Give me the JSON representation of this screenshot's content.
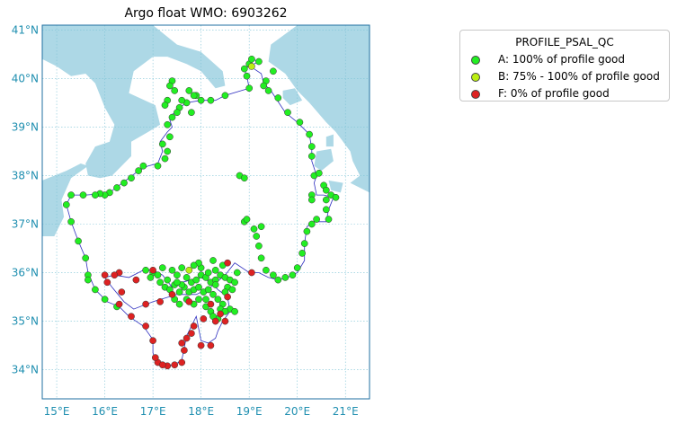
{
  "map": {
    "title": "Argo float WMO: 6903262",
    "x_ticks": [
      "15°E",
      "16°E",
      "17°E",
      "18°E",
      "19°E",
      "20°E",
      "21°E"
    ],
    "y_ticks": [
      "34°N",
      "35°N",
      "36°N",
      "37°N",
      "38°N",
      "39°N",
      "40°N",
      "41°N"
    ],
    "lon_range": [
      14.7,
      21.5
    ],
    "lat_range": [
      33.4,
      41.1
    ],
    "colors": {
      "sea": "#ffffff",
      "land": "#add8e6",
      "track": "#3030c0",
      "grid": "#7fc3d6",
      "axis": "#1f8fb0"
    }
  },
  "legend": {
    "title": "PROFILE_PSAL_QC",
    "items": [
      {
        "label": "A: 100% of profile good",
        "color": "#22ee22"
      },
      {
        "label": "B: 75% - 100% of profile good",
        "color": "#bbee11"
      },
      {
        "label": "F: 0% of profile good",
        "color": "#dd2222"
      }
    ]
  },
  "track": [
    [
      19.0,
      40.3
    ],
    [
      19.05,
      40.4
    ],
    [
      19.2,
      40.35
    ],
    [
      18.9,
      40.2
    ],
    [
      18.95,
      40.05
    ],
    [
      19.0,
      39.8
    ],
    [
      18.5,
      39.65
    ],
    [
      18.3,
      39.55
    ],
    [
      18.0,
      39.55
    ],
    [
      17.7,
      39.5
    ],
    [
      17.55,
      39.4
    ],
    [
      17.4,
      39.25
    ],
    [
      17.35,
      39.15
    ],
    [
      17.4,
      39.0
    ],
    [
      17.3,
      38.9
    ],
    [
      17.15,
      38.7
    ],
    [
      17.2,
      38.5
    ],
    [
      17.1,
      38.25
    ],
    [
      16.9,
      38.2
    ],
    [
      16.7,
      38.1
    ],
    [
      16.5,
      37.95
    ],
    [
      16.3,
      37.8
    ],
    [
      16.1,
      37.65
    ],
    [
      15.9,
      37.62
    ],
    [
      15.6,
      37.6
    ],
    [
      15.3,
      37.6
    ],
    [
      15.2,
      37.4
    ],
    [
      15.3,
      37.05
    ],
    [
      15.45,
      36.65
    ],
    [
      15.6,
      36.3
    ],
    [
      15.65,
      36.0
    ],
    [
      15.8,
      35.65
    ],
    [
      16.05,
      35.4
    ],
    [
      16.3,
      35.3
    ],
    [
      16.5,
      35.1
    ],
    [
      16.8,
      34.9
    ],
    [
      17.0,
      34.62
    ],
    [
      17.0,
      34.35
    ],
    [
      17.05,
      34.2
    ],
    [
      17.1,
      34.1
    ],
    [
      17.3,
      34.08
    ],
    [
      17.45,
      34.1
    ],
    [
      17.6,
      34.2
    ],
    [
      17.65,
      34.45
    ],
    [
      17.7,
      34.7
    ],
    [
      17.8,
      34.9
    ],
    [
      17.9,
      35.1
    ],
    [
      18.0,
      34.6
    ],
    [
      18.15,
      34.55
    ],
    [
      18.3,
      34.65
    ],
    [
      18.35,
      34.8
    ],
    [
      18.45,
      35.0
    ],
    [
      18.6,
      35.2
    ],
    [
      18.55,
      35.5
    ],
    [
      18.35,
      35.65
    ],
    [
      18.2,
      35.8
    ],
    [
      18.0,
      35.9
    ],
    [
      17.8,
      35.85
    ],
    [
      17.6,
      35.8
    ],
    [
      17.4,
      35.7
    ],
    [
      17.2,
      35.95
    ],
    [
      17.0,
      36.05
    ],
    [
      16.8,
      36.05
    ],
    [
      16.5,
      35.9
    ],
    [
      16.2,
      35.95
    ],
    [
      16.0,
      35.9
    ],
    [
      16.15,
      35.7
    ],
    [
      16.4,
      35.4
    ],
    [
      16.6,
      35.25
    ],
    [
      17.0,
      35.4
    ],
    [
      17.5,
      35.55
    ],
    [
      17.9,
      35.55
    ],
    [
      18.2,
      35.7
    ],
    [
      18.5,
      35.95
    ],
    [
      18.7,
      36.2
    ],
    [
      19.0,
      36.0
    ],
    [
      19.2,
      36.0
    ],
    [
      19.4,
      35.9
    ],
    [
      19.6,
      35.85
    ],
    [
      19.8,
      35.9
    ],
    [
      20.0,
      36.0
    ],
    [
      20.15,
      36.25
    ],
    [
      20.15,
      36.6
    ],
    [
      20.2,
      36.95
    ],
    [
      20.35,
      37.05
    ],
    [
      20.6,
      37.05
    ],
    [
      20.65,
      37.3
    ],
    [
      20.75,
      37.55
    ],
    [
      20.55,
      37.6
    ],
    [
      20.4,
      37.6
    ],
    [
      20.35,
      37.85
    ],
    [
      20.4,
      38.0
    ],
    [
      20.3,
      38.3
    ],
    [
      20.3,
      38.55
    ],
    [
      20.25,
      38.85
    ],
    [
      20.0,
      39.1
    ],
    [
      19.75,
      39.3
    ],
    [
      19.55,
      39.6
    ],
    [
      19.45,
      39.75
    ],
    [
      19.3,
      39.9
    ],
    [
      19.25,
      40.1
    ],
    [
      19.1,
      40.2
    ]
  ],
  "floats_red": [
    [
      17.3,
      34.08
    ],
    [
      17.45,
      34.1
    ],
    [
      17.1,
      34.15
    ],
    [
      17.05,
      34.25
    ],
    [
      17.6,
      34.15
    ],
    [
      17.65,
      34.4
    ],
    [
      17.7,
      34.65
    ],
    [
      17.8,
      34.75
    ],
    [
      17.85,
      34.9
    ],
    [
      18.0,
      34.5
    ],
    [
      18.2,
      34.5
    ],
    [
      16.85,
      34.9
    ],
    [
      16.55,
      35.1
    ],
    [
      16.3,
      35.35
    ],
    [
      16.35,
      35.6
    ],
    [
      17.4,
      35.55
    ],
    [
      17.75,
      35.4
    ],
    [
      18.05,
      35.05
    ],
    [
      18.3,
      35.0
    ],
    [
      18.4,
      35.15
    ],
    [
      16.0,
      35.95
    ],
    [
      16.3,
      36.0
    ],
    [
      16.65,
      35.85
    ],
    [
      16.05,
      35.8
    ],
    [
      17.0,
      36.05
    ],
    [
      18.55,
      35.5
    ],
    [
      18.55,
      36.2
    ],
    [
      19.05,
      36.0
    ],
    [
      17.15,
      35.4
    ],
    [
      16.85,
      35.35
    ],
    [
      16.2,
      35.95
    ],
    [
      18.2,
      35.35
    ],
    [
      17.0,
      34.6
    ],
    [
      17.6,
      34.55
    ],
    [
      17.2,
      34.1
    ],
    [
      18.5,
      35.0
    ]
  ],
  "floats_yellow": [
    [
      17.75,
      36.05
    ],
    [
      19.05,
      40.25
    ]
  ],
  "floats_green": [
    [
      19.0,
      40.3
    ],
    [
      19.05,
      40.4
    ],
    [
      19.2,
      40.35
    ],
    [
      18.9,
      40.2
    ],
    [
      18.95,
      40.05
    ],
    [
      19.0,
      39.8
    ],
    [
      19.5,
      40.15
    ],
    [
      19.35,
      39.95
    ],
    [
      19.3,
      39.85
    ],
    [
      19.4,
      39.75
    ],
    [
      19.6,
      39.6
    ],
    [
      19.8,
      39.3
    ],
    [
      20.05,
      39.1
    ],
    [
      20.25,
      38.85
    ],
    [
      20.3,
      38.6
    ],
    [
      20.3,
      38.4
    ],
    [
      20.35,
      38.0
    ],
    [
      20.45,
      38.05
    ],
    [
      20.55,
      37.8
    ],
    [
      20.6,
      37.7
    ],
    [
      20.7,
      37.6
    ],
    [
      20.8,
      37.55
    ],
    [
      20.6,
      37.5
    ],
    [
      20.3,
      37.6
    ],
    [
      20.3,
      37.5
    ],
    [
      20.6,
      37.3
    ],
    [
      20.65,
      37.1
    ],
    [
      20.4,
      37.1
    ],
    [
      20.3,
      37.0
    ],
    [
      20.2,
      36.85
    ],
    [
      20.15,
      36.6
    ],
    [
      20.1,
      36.4
    ],
    [
      20.0,
      36.1
    ],
    [
      19.9,
      35.95
    ],
    [
      19.75,
      35.9
    ],
    [
      19.6,
      35.85
    ],
    [
      19.5,
      35.95
    ],
    [
      19.35,
      36.05
    ],
    [
      19.25,
      36.3
    ],
    [
      19.2,
      36.55
    ],
    [
      19.15,
      36.75
    ],
    [
      19.25,
      36.95
    ],
    [
      19.1,
      36.9
    ],
    [
      18.9,
      37.05
    ],
    [
      18.95,
      37.1
    ],
    [
      18.8,
      38.0
    ],
    [
      18.9,
      37.95
    ],
    [
      18.5,
      39.65
    ],
    [
      18.2,
      39.55
    ],
    [
      18.0,
      39.55
    ],
    [
      17.9,
      39.65
    ],
    [
      17.7,
      39.5
    ],
    [
      17.55,
      39.4
    ],
    [
      17.5,
      39.3
    ],
    [
      17.4,
      39.2
    ],
    [
      17.3,
      39.05
    ],
    [
      17.35,
      38.8
    ],
    [
      17.2,
      38.65
    ],
    [
      17.3,
      38.5
    ],
    [
      17.25,
      38.35
    ],
    [
      17.1,
      38.2
    ],
    [
      16.8,
      38.2
    ],
    [
      16.7,
      38.1
    ],
    [
      16.55,
      37.95
    ],
    [
      16.4,
      37.85
    ],
    [
      16.25,
      37.75
    ],
    [
      16.1,
      37.65
    ],
    [
      16.0,
      37.6
    ],
    [
      15.9,
      37.63
    ],
    [
      15.8,
      37.6
    ],
    [
      15.55,
      37.6
    ],
    [
      15.3,
      37.6
    ],
    [
      15.2,
      37.4
    ],
    [
      15.3,
      37.05
    ],
    [
      15.45,
      36.65
    ],
    [
      15.6,
      36.3
    ],
    [
      15.65,
      35.95
    ],
    [
      15.65,
      35.85
    ],
    [
      15.8,
      35.65
    ],
    [
      16.0,
      35.45
    ],
    [
      16.25,
      35.3
    ],
    [
      17.3,
      39.55
    ],
    [
      17.4,
      39.95
    ],
    [
      17.35,
      39.85
    ],
    [
      17.75,
      39.75
    ],
    [
      17.85,
      39.65
    ],
    [
      17.6,
      39.55
    ],
    [
      17.45,
      39.75
    ],
    [
      17.25,
      39.45
    ],
    [
      17.8,
      39.3
    ],
    [
      16.85,
      36.05
    ],
    [
      17.0,
      36.0
    ],
    [
      17.1,
      35.95
    ],
    [
      17.2,
      36.1
    ],
    [
      17.3,
      35.85
    ],
    [
      17.4,
      36.05
    ],
    [
      17.5,
      35.95
    ],
    [
      17.6,
      36.1
    ],
    [
      17.7,
      35.9
    ],
    [
      17.8,
      35.8
    ],
    [
      17.9,
      35.85
    ],
    [
      18.0,
      35.95
    ],
    [
      18.1,
      35.9
    ],
    [
      18.2,
      35.8
    ],
    [
      18.3,
      35.85
    ],
    [
      18.4,
      35.95
    ],
    [
      18.5,
      35.9
    ],
    [
      18.6,
      35.85
    ],
    [
      18.7,
      35.8
    ],
    [
      18.75,
      36.0
    ],
    [
      17.25,
      35.7
    ],
    [
      17.45,
      35.75
    ],
    [
      17.55,
      35.6
    ],
    [
      17.65,
      35.7
    ],
    [
      17.75,
      35.6
    ],
    [
      17.85,
      35.65
    ],
    [
      17.95,
      35.7
    ],
    [
      18.05,
      35.6
    ],
    [
      18.15,
      35.65
    ],
    [
      18.25,
      35.55
    ],
    [
      18.35,
      35.45
    ],
    [
      18.45,
      35.35
    ],
    [
      18.6,
      35.25
    ],
    [
      18.4,
      35.25
    ],
    [
      18.2,
      35.2
    ],
    [
      18.1,
      35.3
    ],
    [
      17.95,
      35.45
    ],
    [
      17.85,
      35.35
    ],
    [
      17.7,
      35.45
    ],
    [
      17.55,
      35.35
    ],
    [
      17.45,
      35.45
    ],
    [
      17.35,
      35.65
    ],
    [
      18.0,
      36.1
    ],
    [
      18.15,
      36.0
    ],
    [
      18.3,
      36.05
    ],
    [
      18.45,
      36.15
    ],
    [
      18.25,
      36.25
    ],
    [
      17.95,
      36.2
    ],
    [
      17.85,
      36.15
    ],
    [
      17.6,
      35.75
    ],
    [
      18.55,
      35.7
    ],
    [
      18.65,
      35.65
    ],
    [
      18.1,
      35.45
    ],
    [
      17.5,
      35.8
    ],
    [
      17.15,
      35.8
    ],
    [
      16.95,
      35.9
    ],
    [
      18.7,
      35.2
    ],
    [
      18.5,
      35.2
    ],
    [
      18.35,
      35.05
    ],
    [
      18.25,
      35.1
    ],
    [
      18.5,
      35.6
    ],
    [
      18.3,
      35.75
    ]
  ]
}
